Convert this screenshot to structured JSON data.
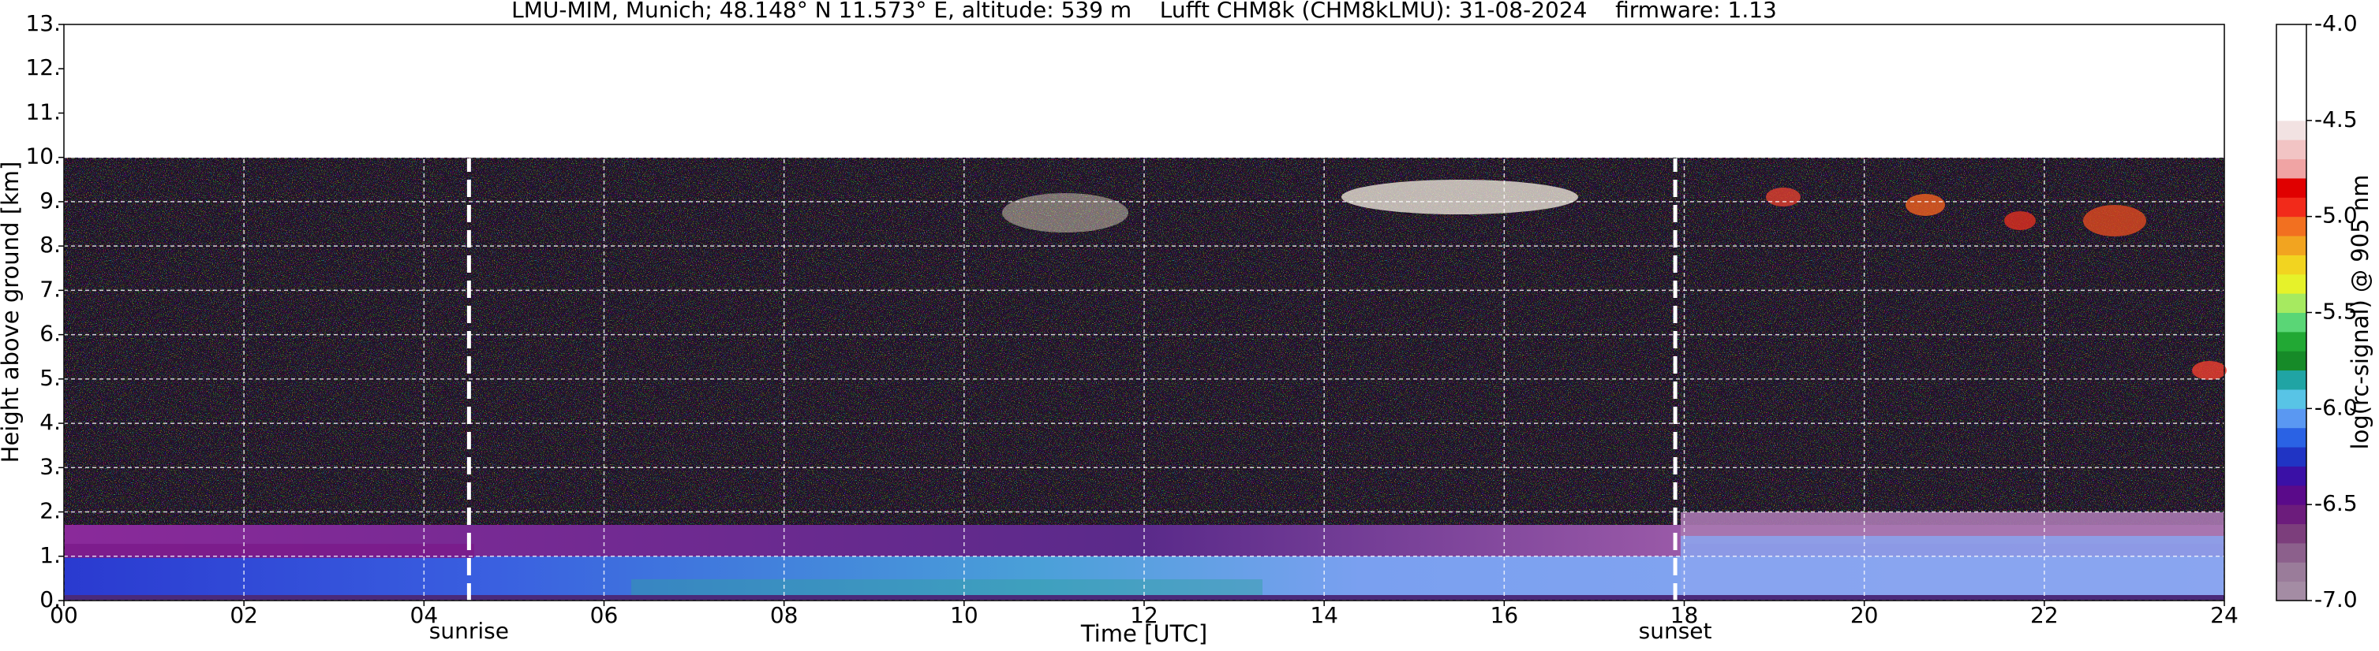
{
  "chart_data": {
    "type": "heatmap",
    "title": "LMU-MIM, Munich; 48.148° N 11.573° E, altitude: 539 m    Lufft CHM8k (CHM8kLMU): 31-08-2024    firmware: 1.13",
    "x_label": "Time [UTC]",
    "y_label": "Height above ground [km]",
    "colorbar_label": "log(rc-signal) @ 905 nm",
    "xlim": [
      0,
      24
    ],
    "xticks": [
      {
        "value": 0,
        "label": "00"
      },
      {
        "value": 2,
        "label": "02"
      },
      {
        "value": 4,
        "label": "04"
      },
      {
        "value": 6,
        "label": "06"
      },
      {
        "value": 8,
        "label": "08"
      },
      10,
      12,
      14,
      16,
      18,
      20,
      22,
      24
    ],
    "ylim": [
      0,
      13
    ],
    "yticks": [
      {
        "value": 0,
        "label": "0."
      },
      {
        "value": 1,
        "label": "1."
      },
      {
        "value": 2,
        "label": "2."
      },
      {
        "value": 3,
        "label": "3."
      },
      {
        "value": 4,
        "label": "4."
      },
      {
        "value": 5,
        "label": "5."
      },
      {
        "value": 6,
        "label": "6."
      },
      {
        "value": 7,
        "label": "7."
      },
      {
        "value": 8,
        "label": "8."
      },
      {
        "value": 9,
        "label": "9."
      },
      {
        "value": 10,
        "label": "10."
      },
      {
        "value": 11,
        "label": "11."
      },
      {
        "value": 12,
        "label": "12."
      },
      {
        "value": 13,
        "label": "13."
      }
    ],
    "clim": [
      -7,
      -4
    ],
    "cticks": [
      {
        "value": -7,
        "label": "-7.0"
      },
      -6.5,
      {
        "value": -6,
        "label": "-6.0"
      },
      -5.5,
      {
        "value": -5,
        "label": "-5.0"
      },
      -4.5,
      {
        "value": -4,
        "label": "-4.0"
      }
    ],
    "colormap": [
      "#a48ca4",
      "#9a7c9a",
      "#8c608c",
      "#7c3e7c",
      "#6c1c7c",
      "#5a0a8a",
      "#3a10a6",
      "#2034c4",
      "#2a62e4",
      "#5a98f2",
      "#58c4e6",
      "#20a4a4",
      "#168a28",
      "#22a834",
      "#5ad676",
      "#a6ea60",
      "#e6f22a",
      "#f2d420",
      "#f2a420",
      "#f27020",
      "#f22a1a",
      "#e00000",
      "#f0a4a4",
      "#f2c4c4",
      "#f2e2e2",
      "#ffffff",
      "#ffffff",
      "#ffffff",
      "#ffffff",
      "#ffffff"
    ],
    "grid": true,
    "grid_color": "#ffffff",
    "annotations": [
      {
        "x": 4.5,
        "text": "sunrise"
      },
      {
        "x": 17.9,
        "text": "sunset"
      }
    ]
  }
}
